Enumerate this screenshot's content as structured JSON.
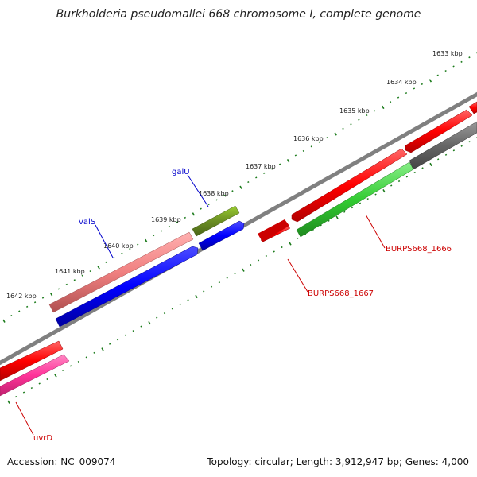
{
  "title": "Burkholderia pseudomallei 668 chromosome I, complete genome",
  "footer": {
    "accession": "Accession: NC_009074",
    "summary": "Topology: circular; Length: 3,912,947 bp; Genes: 4,000"
  },
  "kbp_labels": [
    "1633 kbp",
    "1634 kbp",
    "1635 kbp",
    "1636 kbp",
    "1637 kbp",
    "1638 kbp",
    "1639 kbp",
    "1640 kbp",
    "1641 kbp",
    "1642 kbp"
  ],
  "gene_labels": {
    "galU": "galU",
    "valS": "valS",
    "burps1666": "BURPS668_1666",
    "burps1667": "BURPS668_1667",
    "uvrD": "uvrD"
  },
  "colors": {
    "backbone": "#808080",
    "tick": "#1a7a1a",
    "red": "#ff0000",
    "pink": "#f08080",
    "olive": "#6b8e23",
    "blue": "#0000ff",
    "green": "#33cc33",
    "gray": "#666666",
    "magenta": "#ff3399",
    "label_blue": "#0000cc",
    "label_red": "#cc0000"
  }
}
